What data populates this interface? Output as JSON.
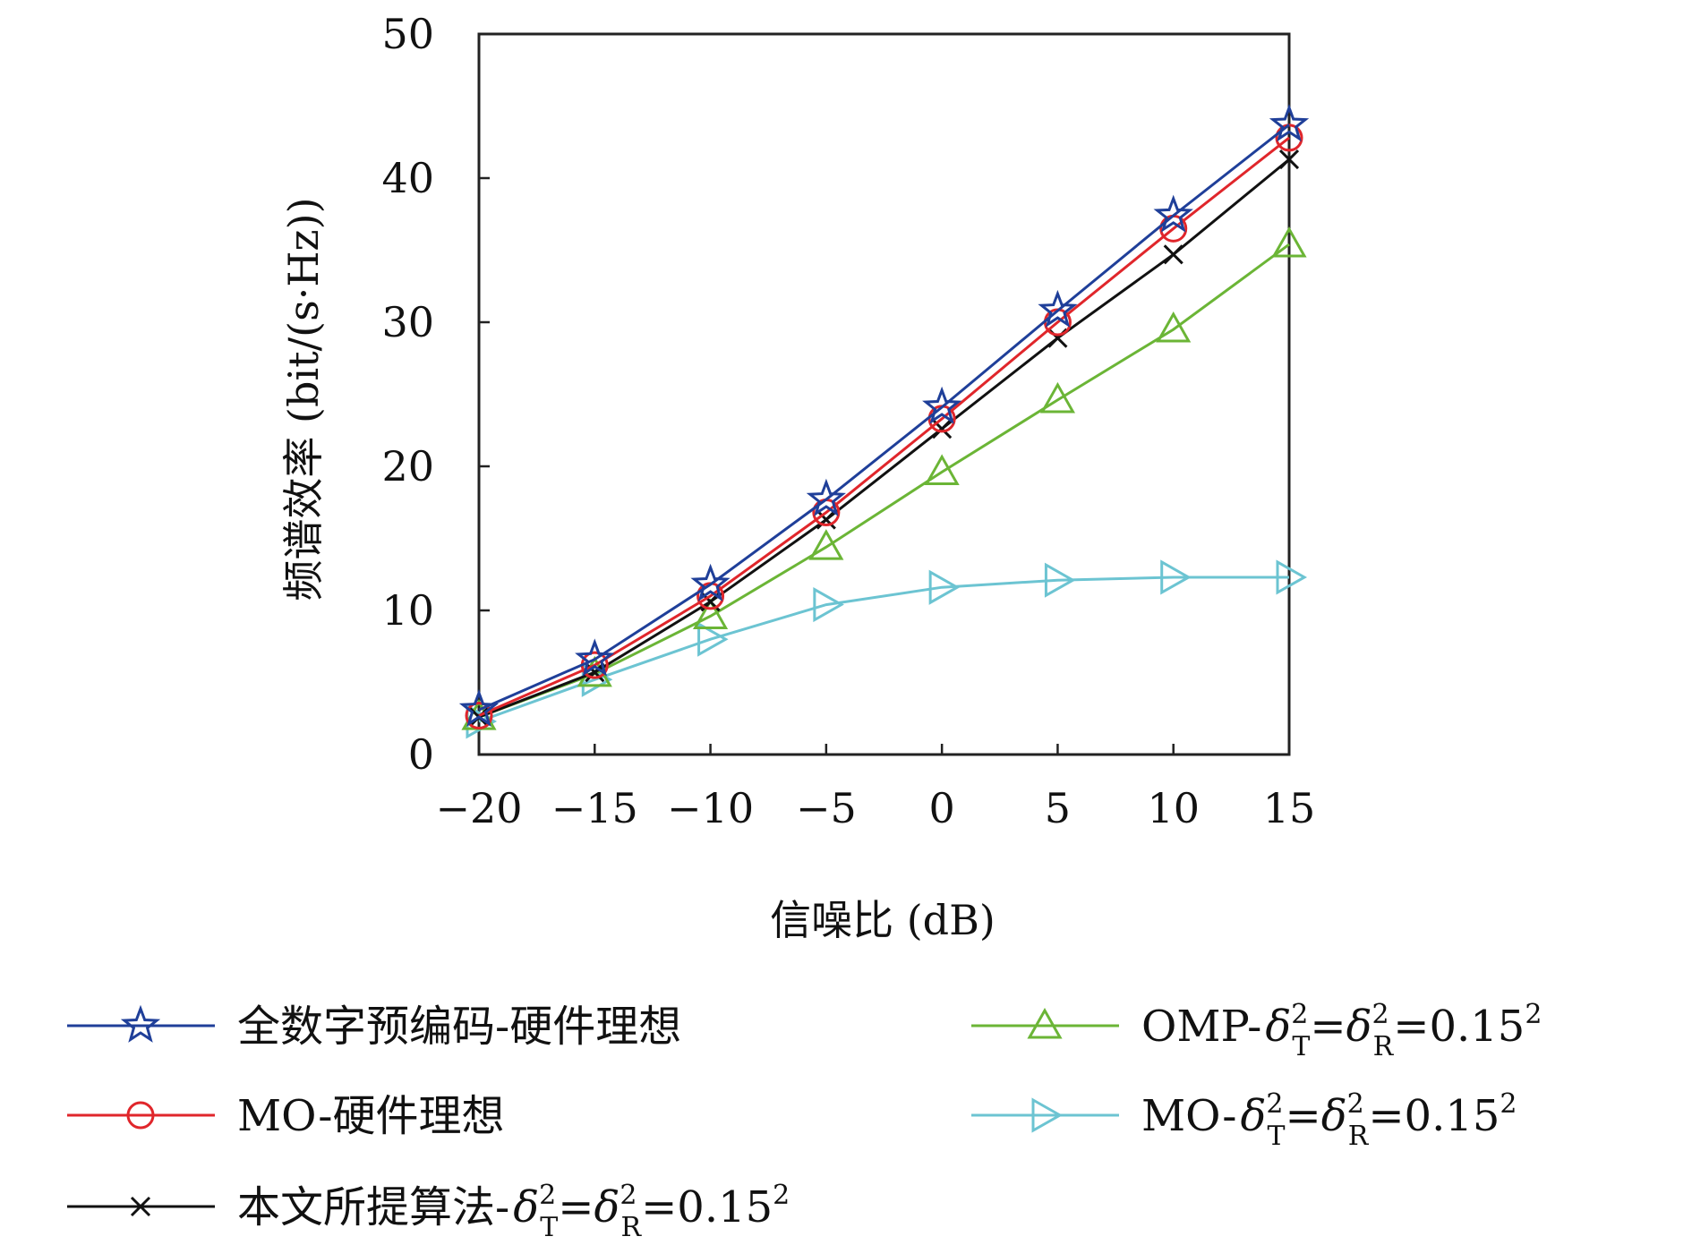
{
  "chart_data": {
    "type": "line",
    "xlabel": "信噪比 (dB)",
    "ylabel": "频谱效率 (bit/(s·Hz))",
    "xlim": [
      -20,
      15
    ],
    "ylim": [
      0,
      50
    ],
    "x": [
      -20,
      -15,
      -10,
      -5,
      0,
      5,
      10,
      15
    ],
    "x_tick_labels": [
      "−20",
      "−15",
      "−10",
      "−5",
      "0",
      "5",
      "10",
      "15"
    ],
    "y_ticks": [
      0,
      10,
      20,
      30,
      40,
      50
    ],
    "grid": false,
    "legend_position": "bottom",
    "series": [
      {
        "name": "全数字预编码-硬件理想",
        "color": "#1f3f99",
        "marker": "star-icon",
        "values": [
          3.1,
          6.6,
          11.8,
          17.7,
          24.1,
          30.8,
          37.4,
          43.7
        ]
      },
      {
        "name": "MO-硬件理想",
        "color": "#e0262b",
        "marker": "circle-icon",
        "values": [
          2.7,
          6.2,
          11.0,
          16.8,
          23.3,
          30.0,
          36.5,
          42.8
        ]
      },
      {
        "name": "本文所提算法-δ²T=δ²R=0.15²",
        "color": "#111111",
        "marker": "cross-icon",
        "values": [
          2.6,
          5.7,
          10.6,
          16.3,
          22.6,
          28.9,
          34.7,
          41.3
        ]
      },
      {
        "name": "OMP-δ²T=δ²R=0.15²",
        "color": "#6bb536",
        "marker": "triangle-up-icon",
        "values": [
          2.6,
          5.6,
          9.6,
          14.4,
          19.6,
          24.6,
          29.5,
          35.4
        ]
      },
      {
        "name": "MO-δ²T=δ²R=0.15²",
        "color": "#6cc4d2",
        "marker": "triangle-right-icon",
        "values": [
          2.3,
          5.2,
          8.0,
          10.4,
          11.6,
          12.1,
          12.3,
          12.3
        ]
      }
    ],
    "legend_entries": [
      {
        "prefix": "全数字预编码-硬件理想",
        "has_delta": false
      },
      {
        "prefix": "MO-硬件理想",
        "has_delta": false
      },
      {
        "prefix": "本文所提算法-",
        "has_delta": true
      },
      {
        "prefix": "OMP-",
        "has_delta": true
      },
      {
        "prefix": "MO-",
        "has_delta": true
      }
    ],
    "delta_label": {
      "symbol": "δ",
      "sup": "2",
      "sub_t": "T",
      "sub_r": "R",
      "eq": "=",
      "value": "0.15",
      "value_sup": "2"
    }
  }
}
